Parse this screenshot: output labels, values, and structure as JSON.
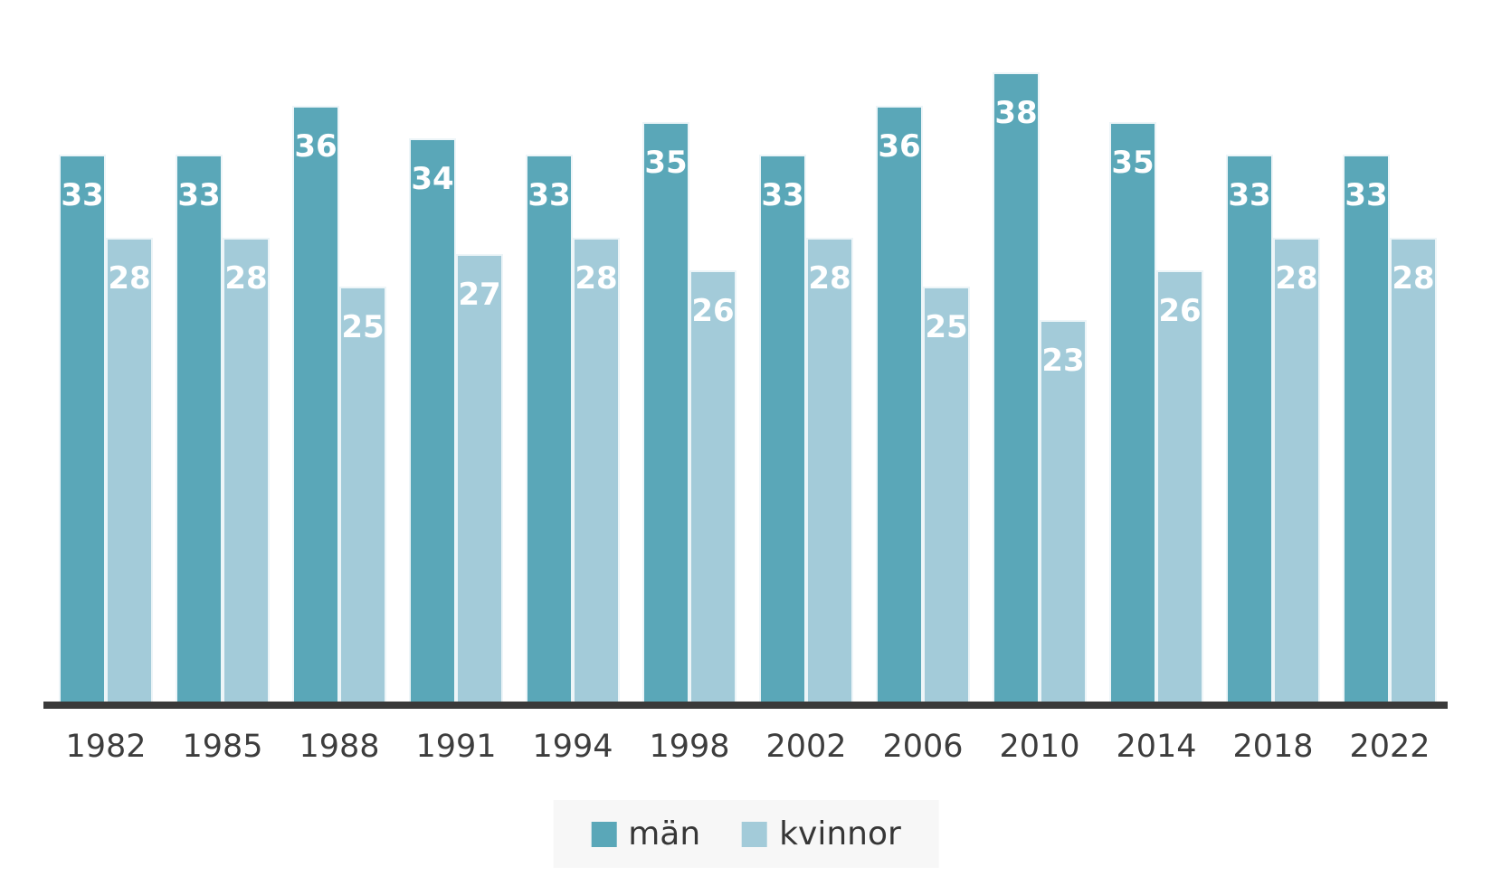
{
  "chart_data": {
    "type": "bar",
    "title": "",
    "xlabel": "",
    "ylabel": "",
    "categories": [
      "1982",
      "1985",
      "1988",
      "1991",
      "1994",
      "1998",
      "2002",
      "2006",
      "2010",
      "2014",
      "2018",
      "2022"
    ],
    "series": [
      {
        "name": "män",
        "color": "#5aa7b8",
        "values": [
          33,
          33,
          36,
          34,
          33,
          35,
          33,
          36,
          38,
          35,
          33,
          33
        ]
      },
      {
        "name": "kvinnor",
        "color": "#a3cbd9",
        "values": [
          28,
          28,
          25,
          27,
          28,
          26,
          28,
          25,
          23,
          26,
          28,
          28
        ]
      }
    ],
    "ylim": [
      0,
      40
    ],
    "grid": false,
    "y_axis_visible": false,
    "value_labels_position": "inside-top",
    "value_label_color": "#ffffff",
    "axis_line_color": "#3a3a3a",
    "tick_label_color": "#3d3d3d",
    "legend_position": "bottom-center",
    "legend_background": "#f7f7f7",
    "legend_text_color": "#363636"
  }
}
